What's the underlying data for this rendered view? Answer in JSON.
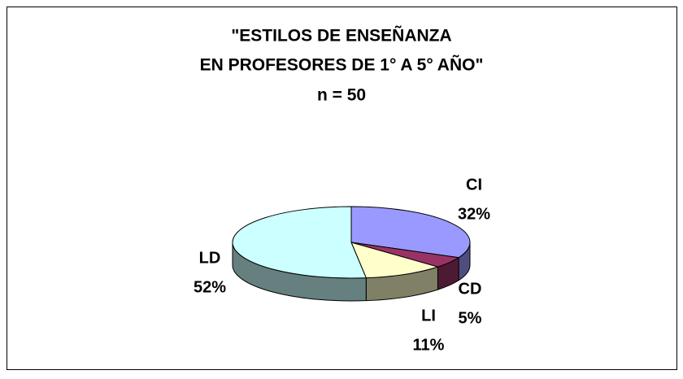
{
  "chart_data": {
    "type": "pie",
    "title": [
      "\"ESTILOS DE ENSEÑANZA",
      "EN PROFESORES DE 1° A  5° AÑO\"",
      "n = 50"
    ],
    "categories": [
      "CI",
      "CD",
      "LI",
      "LD"
    ],
    "values": [
      32,
      5,
      11,
      52
    ],
    "value_labels": [
      "32%",
      "5%",
      "11%",
      "52%"
    ],
    "colors": [
      "#9999ff",
      "#993366",
      "#ffffcc",
      "#ccffff"
    ],
    "side_colors": [
      "#4d4d80",
      "#4d1a33",
      "#808066",
      "#668080"
    ]
  }
}
